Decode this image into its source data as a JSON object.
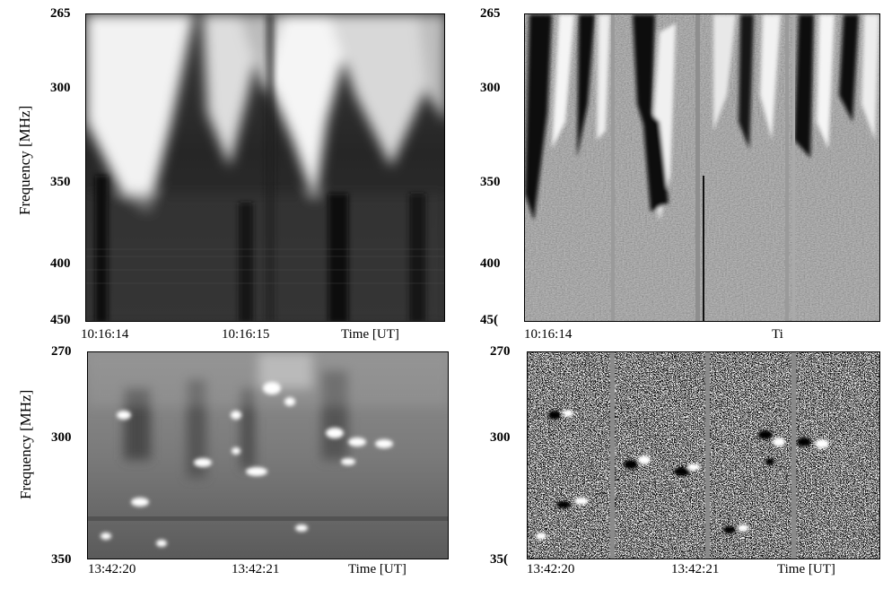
{
  "chart_data": [
    {
      "type": "heatmap",
      "panel": "top-left",
      "xlabel": "Time [UT]",
      "ylabel": "Frequency [MHz]",
      "x_ticks": [
        "10:16:14",
        "10:16:15"
      ],
      "y_ticks": [
        "265",
        "300",
        "350",
        "400",
        "450"
      ],
      "ylim": [
        265,
        450
      ],
      "style": "grayscale dynamic spectrum"
    },
    {
      "type": "heatmap",
      "panel": "top-right",
      "xlabel": "Ti",
      "ylabel": "",
      "x_ticks": [
        "10:16:14"
      ],
      "y_ticks": [
        "265",
        "300",
        "350",
        "400",
        "45("
      ],
      "ylim": [
        265,
        450
      ],
      "style": "high-pass filtered dynamic spectrum"
    },
    {
      "type": "heatmap",
      "panel": "bottom-left",
      "xlabel": "Time [UT]",
      "ylabel": "Frequency [MHz]",
      "x_ticks": [
        "13:42:20",
        "13:42:21"
      ],
      "y_ticks": [
        "270",
        "300",
        "350"
      ],
      "ylim": [
        270,
        350
      ],
      "style": "grayscale dynamic spectrum"
    },
    {
      "type": "heatmap",
      "panel": "bottom-right",
      "xlabel": "Time [UT]",
      "ylabel": "",
      "x_ticks": [
        "13:42:20",
        "13:42:21"
      ],
      "y_ticks": [
        "270",
        "300",
        "35("
      ],
      "ylim": [
        270,
        350
      ],
      "style": "high-pass filtered dynamic spectrum"
    }
  ]
}
